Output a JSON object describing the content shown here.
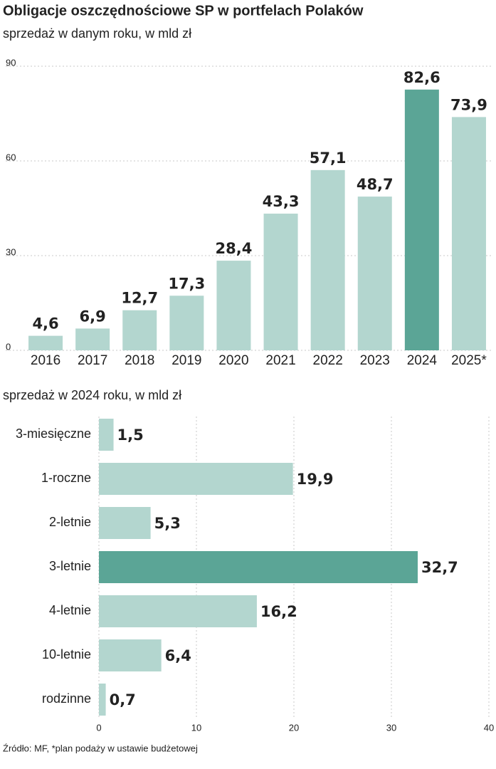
{
  "title": "Obligacje oszczędnościowe SP w portfelach Polaków",
  "chart_data": [
    {
      "type": "bar",
      "subtitle": "sprzedaż w danym roku, w mld zł",
      "categories": [
        "2016",
        "2017",
        "2018",
        "2019",
        "2020",
        "2021",
        "2022",
        "2023",
        "2024",
        "2025*"
      ],
      "values": [
        4.6,
        6.9,
        12.7,
        17.3,
        28.4,
        43.3,
        57.1,
        48.7,
        82.6,
        73.9
      ],
      "value_labels": [
        "4,6",
        "6,9",
        "12,7",
        "17,3",
        "28,4",
        "43,3",
        "57,1",
        "48,7",
        "82,6",
        "73,9"
      ],
      "colors": [
        "#b3d6cf",
        "#b3d6cf",
        "#b3d6cf",
        "#b3d6cf",
        "#b3d6cf",
        "#b3d6cf",
        "#b3d6cf",
        "#b3d6cf",
        "#5ba596",
        "#b3d6cf"
      ],
      "ylim": [
        0,
        90
      ],
      "yticks": [
        0,
        30,
        60,
        90
      ],
      "grid": true
    },
    {
      "type": "barh",
      "subtitle": "sprzedaż w 2024 roku, w mld zł",
      "categories": [
        "3-miesięczne",
        "1-roczne",
        "2-letnie",
        "3-letnie",
        "4-letnie",
        "10-letnie",
        "rodzinne"
      ],
      "values": [
        1.5,
        19.9,
        5.3,
        32.7,
        16.2,
        6.4,
        0.7
      ],
      "value_labels": [
        "1,5",
        "19,9",
        "5,3",
        "32,7",
        "16,2",
        "6,4",
        "0,7"
      ],
      "colors": [
        "#b3d6cf",
        "#b3d6cf",
        "#b3d6cf",
        "#5ba596",
        "#b3d6cf",
        "#b3d6cf",
        "#b3d6cf"
      ],
      "xlim": [
        0,
        40
      ],
      "xticks": [
        0,
        10,
        20,
        30,
        40
      ],
      "grid": true
    }
  ],
  "source": "Źródło: MF, *plan podaży w ustawie budżetowej"
}
